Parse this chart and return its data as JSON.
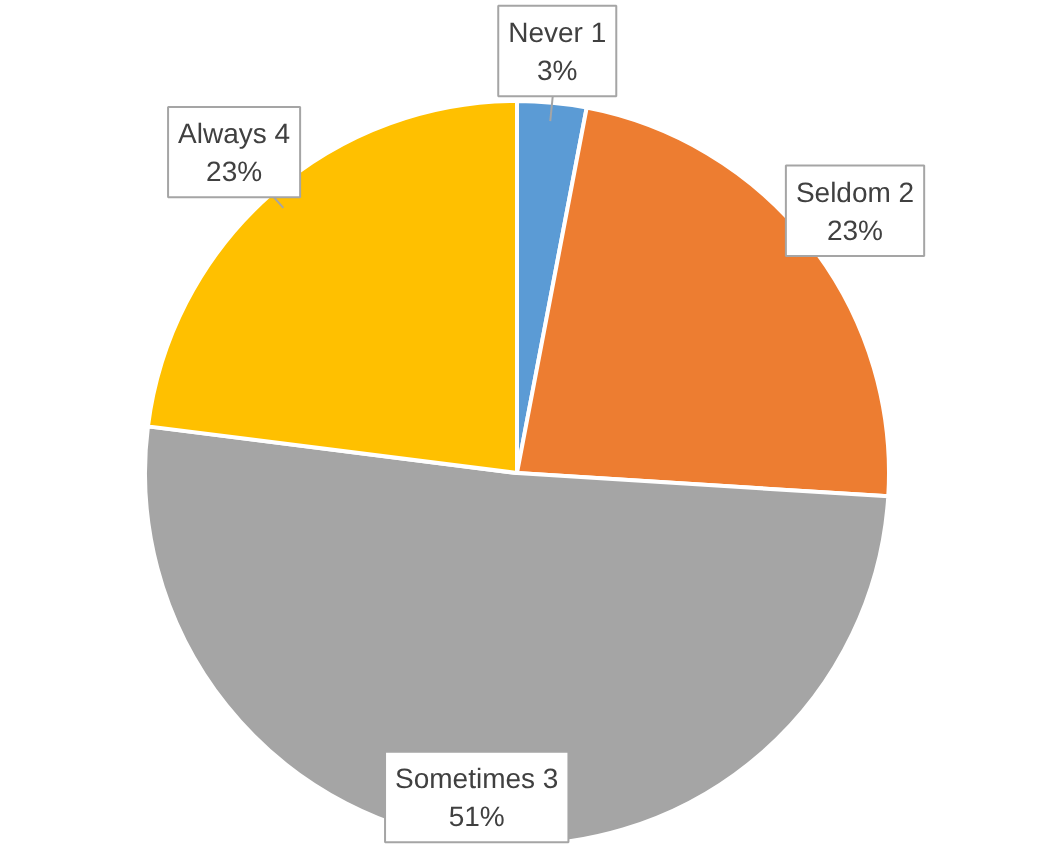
{
  "chart_data": {
    "type": "pie",
    "categories": [
      "Never 1",
      "Seldom 2",
      "Sometimes 3",
      "Always 4"
    ],
    "values": [
      3,
      23,
      51,
      23
    ],
    "colors": [
      "#5b9bd5",
      "#ed7d31",
      "#a5a5a5",
      "#ffc000"
    ],
    "value_labels": [
      "3%",
      "23%",
      "51%",
      "23%"
    ]
  }
}
